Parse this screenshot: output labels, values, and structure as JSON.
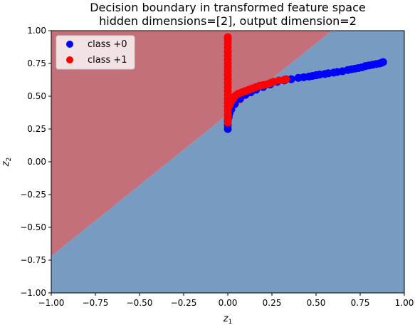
{
  "chart_data": {
    "type": "scatter",
    "title": "Decision boundary in transformed feature space",
    "subtitle": "hidden dimensions=[2], output dimension=2",
    "xlabel_base": "z",
    "xlabel_sub": "1",
    "ylabel_base": "z",
    "ylabel_sub": "2",
    "xlim": [
      -1.0,
      1.0
    ],
    "ylim": [
      -1.0,
      1.0
    ],
    "xticks": [
      "−1.00",
      "−0.75",
      "−0.50",
      "−0.25",
      "0.00",
      "0.25",
      "0.50",
      "0.75",
      "1.00"
    ],
    "yticks": [
      "−1.00",
      "−0.75",
      "−0.50",
      "−0.25",
      "0.00",
      "0.25",
      "0.50",
      "0.75",
      "1.00"
    ],
    "grid": false,
    "legend_position": "top-left",
    "regions": {
      "boundary_line": {
        "point_a": [
          -1.0,
          -0.72
        ],
        "point_b": [
          0.59,
          1.0
        ]
      },
      "class1_region_color": "#c4707a",
      "class0_region_color": "#789bc2"
    },
    "series": [
      {
        "name": "class +0",
        "color": "#0000ff",
        "points": [
          [
            0.0,
            0.25
          ],
          [
            0.0,
            0.28
          ],
          [
            0.0,
            0.31
          ],
          [
            0.005,
            0.34
          ],
          [
            0.01,
            0.37
          ],
          [
            0.02,
            0.4
          ],
          [
            0.04,
            0.44
          ],
          [
            0.07,
            0.48
          ],
          [
            0.1,
            0.51
          ],
          [
            0.13,
            0.53
          ],
          [
            0.16,
            0.55
          ],
          [
            0.2,
            0.57
          ],
          [
            0.24,
            0.59
          ],
          [
            0.28,
            0.61
          ],
          [
            0.32,
            0.62
          ],
          [
            0.36,
            0.63
          ],
          [
            0.4,
            0.64
          ],
          [
            0.43,
            0.645
          ],
          [
            0.46,
            0.65
          ],
          [
            0.48,
            0.655
          ],
          [
            0.5,
            0.66
          ],
          [
            0.52,
            0.665
          ],
          [
            0.55,
            0.67
          ],
          [
            0.57,
            0.675
          ],
          [
            0.6,
            0.68
          ],
          [
            0.62,
            0.685
          ],
          [
            0.65,
            0.69
          ],
          [
            0.68,
            0.7
          ],
          [
            0.7,
            0.705
          ],
          [
            0.72,
            0.71
          ],
          [
            0.74,
            0.715
          ],
          [
            0.76,
            0.72
          ],
          [
            0.78,
            0.73
          ],
          [
            0.8,
            0.735
          ],
          [
            0.82,
            0.74
          ],
          [
            0.84,
            0.745
          ],
          [
            0.86,
            0.75
          ],
          [
            0.87,
            0.755
          ],
          [
            0.88,
            0.76
          ]
        ]
      },
      {
        "name": "class +1",
        "color": "#ff0000",
        "points": [
          [
            0.0,
            0.3
          ],
          [
            0.0,
            0.33
          ],
          [
            0.0,
            0.36
          ],
          [
            0.0,
            0.39
          ],
          [
            0.0,
            0.42
          ],
          [
            0.0,
            0.45
          ],
          [
            0.0,
            0.48
          ],
          [
            0.0,
            0.51
          ],
          [
            0.0,
            0.54
          ],
          [
            0.0,
            0.57
          ],
          [
            0.0,
            0.6
          ],
          [
            0.0,
            0.63
          ],
          [
            0.0,
            0.66
          ],
          [
            0.0,
            0.69
          ],
          [
            0.0,
            0.72
          ],
          [
            0.0,
            0.75
          ],
          [
            0.0,
            0.78
          ],
          [
            0.0,
            0.81
          ],
          [
            0.0,
            0.84
          ],
          [
            0.0,
            0.87
          ],
          [
            0.0,
            0.9
          ],
          [
            0.0,
            0.93
          ],
          [
            0.0,
            0.95
          ],
          [
            0.01,
            0.43
          ],
          [
            0.02,
            0.46
          ],
          [
            0.03,
            0.48
          ],
          [
            0.04,
            0.5
          ],
          [
            0.05,
            0.51
          ],
          [
            0.06,
            0.52
          ],
          [
            0.08,
            0.53
          ],
          [
            0.1,
            0.54
          ],
          [
            0.12,
            0.55
          ],
          [
            0.14,
            0.56
          ],
          [
            0.16,
            0.57
          ],
          [
            0.18,
            0.58
          ],
          [
            0.2,
            0.585
          ],
          [
            0.22,
            0.59
          ],
          [
            0.24,
            0.6
          ],
          [
            0.26,
            0.61
          ],
          [
            0.29,
            0.62
          ],
          [
            0.32,
            0.625
          ],
          [
            0.33,
            0.63
          ]
        ]
      }
    ]
  }
}
